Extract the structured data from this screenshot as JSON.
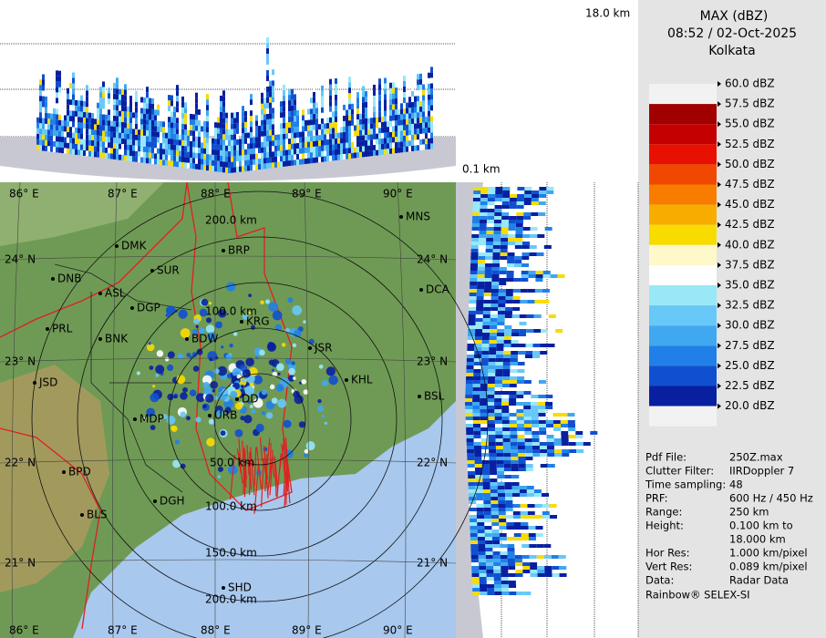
{
  "profile": {
    "top_label": "18.0 km",
    "side_label": "0.1 km"
  },
  "map": {
    "longitudes_top": [
      "86° E",
      "87° E",
      "88° E",
      "89° E",
      "90° E"
    ],
    "longitudes_bottom": [
      "86° E",
      "87° E",
      "88° E",
      "89° E",
      "90° E"
    ],
    "latitudes_left": [
      "24° N",
      "23° N",
      "22° N",
      "21° N"
    ],
    "latitudes_right": [
      "24° N",
      "23° N",
      "22° N",
      "21° N"
    ],
    "cities": [
      "MNS",
      "DMK",
      "BRP",
      "DNB",
      "SUR",
      "ASL",
      "DCA",
      "DGP",
      "KRG",
      "PRL",
      "BNK",
      "BDW",
      "JSR",
      "JSD",
      "KHL",
      "DD",
      "BSL",
      "MDP",
      "URB",
      "BPD",
      "DGH",
      "BLS",
      "SHD"
    ],
    "range_labels": [
      "200.0 km",
      "100.0 km",
      "50.0 km",
      "100.0 km",
      "150.0 km",
      "200.0 km"
    ]
  },
  "panel": {
    "title": "MAX (dBZ)",
    "time": "08:52 / 02-Oct-2025",
    "site": "Kolkata",
    "legend": [
      {
        "label": "60.0 dBZ",
        "color": "#f2f2f2"
      },
      {
        "label": "57.5 dBZ",
        "color": "#a00000"
      },
      {
        "label": "55.0 dBZ",
        "color": "#c40000"
      },
      {
        "label": "52.5 dBZ",
        "color": "#e81000"
      },
      {
        "label": "50.0 dBZ",
        "color": "#f04800"
      },
      {
        "label": "47.5 dBZ",
        "color": "#f87c00"
      },
      {
        "label": "45.0 dBZ",
        "color": "#f8ac00"
      },
      {
        "label": "42.5 dBZ",
        "color": "#f8dc00"
      },
      {
        "label": "40.0 dBZ",
        "color": "#fff8c8"
      },
      {
        "label": "37.5 dBZ",
        "color": "#ffffff"
      },
      {
        "label": "35.0 dBZ",
        "color": "#98e8f8"
      },
      {
        "label": "32.5 dBZ",
        "color": "#68c8f8"
      },
      {
        "label": "30.0 dBZ",
        "color": "#40a8f0"
      },
      {
        "label": "27.5 dBZ",
        "color": "#2080e8"
      },
      {
        "label": "25.0 dBZ",
        "color": "#1050d0"
      },
      {
        "label": "22.5 dBZ",
        "color": "#0820a0"
      },
      {
        "label": "20.0 dBZ",
        "color": "#f2f2f2"
      }
    ],
    "info": [
      {
        "key": "Pdf File:",
        "value": "250Z.max"
      },
      {
        "key": "Clutter Filter:",
        "value": "IIRDoppler 7"
      },
      {
        "key": "Time sampling:",
        "value": "48"
      },
      {
        "key": "PRF:",
        "value": "600 Hz / 450 Hz"
      },
      {
        "key": "Range:",
        "value": "250 km"
      },
      {
        "key": "Height:",
        "value": "0.100 km to"
      },
      {
        "value": "18.000 km"
      },
      {
        "key": "Hor Res:",
        "value": "1.000 km/pixel"
      },
      {
        "key": "Vert Res:",
        "value": "0.089 km/pixel"
      },
      {
        "key": "Data:",
        "value": "Radar Data"
      }
    ],
    "footer": "Rainbow® SELEX-SI"
  }
}
